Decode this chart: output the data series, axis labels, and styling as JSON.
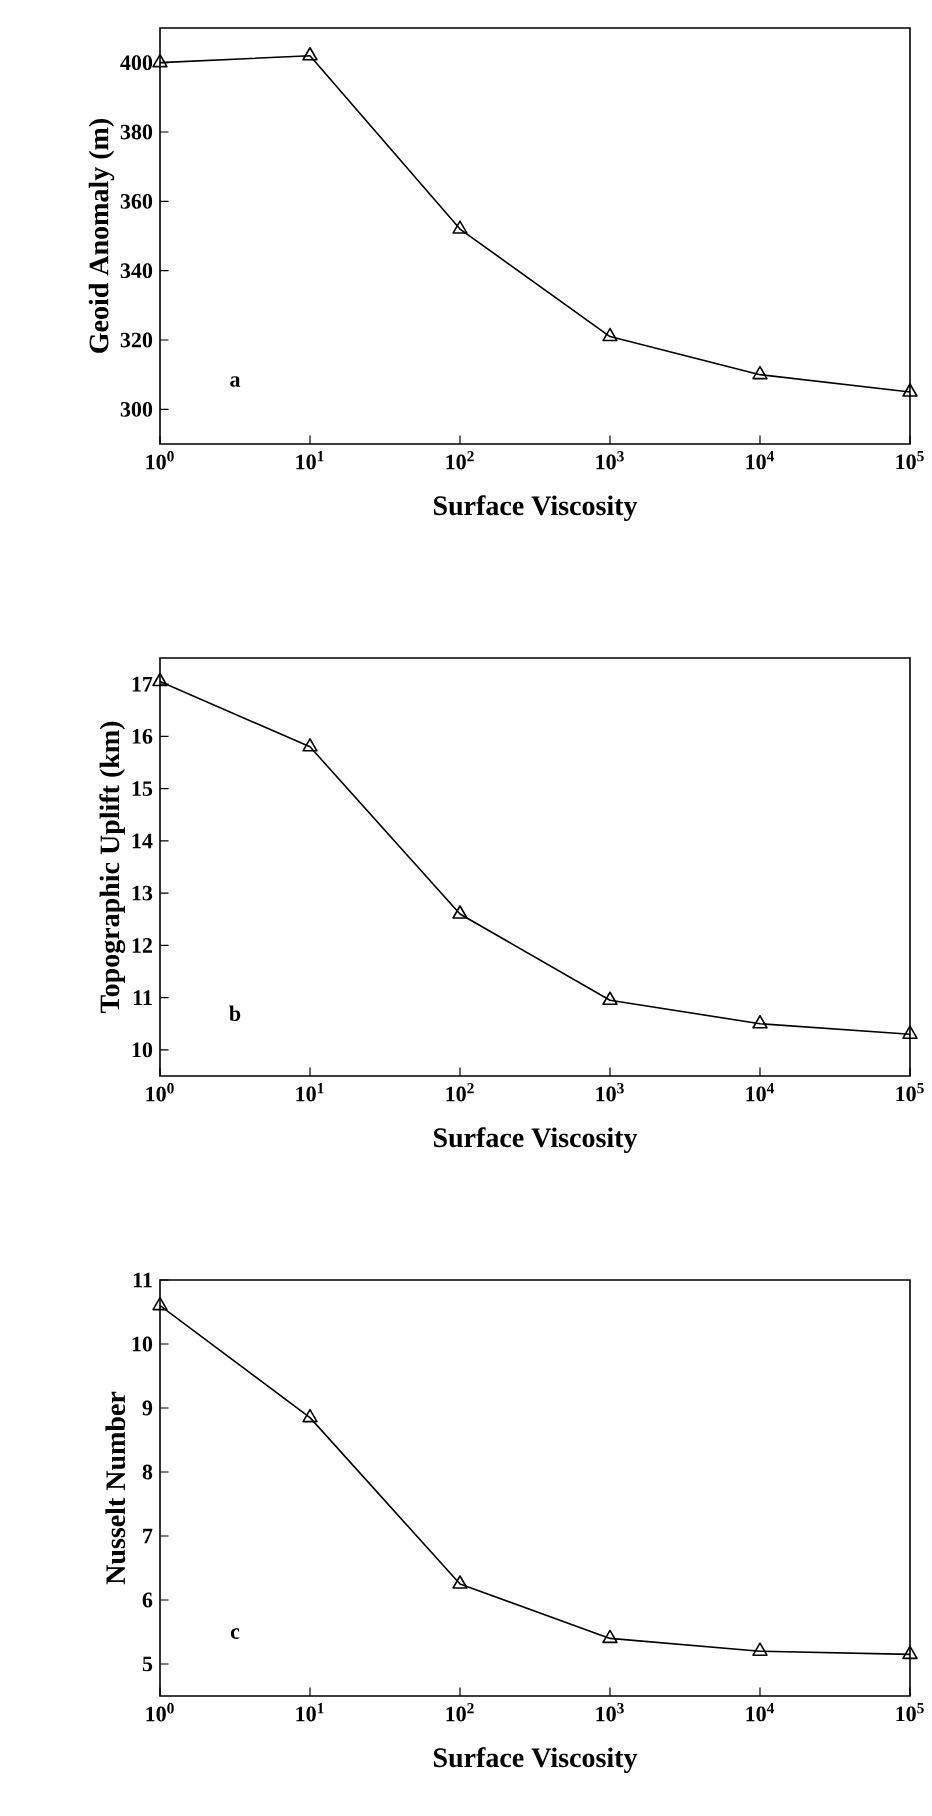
{
  "chart_data": [
    {
      "type": "line",
      "xlabel": "Surface Viscosity",
      "ylabel": "Geoid Anomaly (m)",
      "log": "x",
      "marker": "triangle",
      "line_style": "solid",
      "x": [
        1,
        10,
        100,
        1000,
        10000,
        100000
      ],
      "series": [
        {
          "color": "#000000",
          "values": [
            400,
            402,
            352,
            321,
            310,
            305
          ]
        }
      ],
      "xlim": [
        1,
        100000
      ],
      "xticks": [
        {
          "value": 1,
          "label": "10$^{0}$"
        },
        {
          "value": 10,
          "label": "10$^{1}$"
        },
        {
          "value": 100,
          "label": "10$^{2}$"
        },
        {
          "value": 1000,
          "label": "10$^{3}$"
        },
        {
          "value": 10000,
          "label": "10$^{4}$"
        },
        {
          "value": 100000,
          "label": "10$^{5}$"
        }
      ],
      "ylim": [
        290,
        410
      ],
      "yticks": [
        300,
        320,
        340,
        360,
        380,
        400
      ],
      "annotations": [
        "a"
      ]
    },
    {
      "type": "line",
      "xlabel": "Surface Viscosity",
      "ylabel": "Topographic Uplift (km)",
      "log": "x",
      "marker": "triangle",
      "line_style": "solid",
      "x": [
        1,
        10,
        100,
        1000,
        10000,
        100000
      ],
      "series": [
        {
          "color": "#000000",
          "values": [
            17.05,
            15.8,
            12.6,
            10.95,
            10.5,
            10.3
          ]
        }
      ],
      "xlim": [
        1,
        100000
      ],
      "xticks": [
        {
          "value": 1,
          "label": "10$^{0}$"
        },
        {
          "value": 10,
          "label": "10$^{1}$"
        },
        {
          "value": 100,
          "label": "10$^{2}$"
        },
        {
          "value": 1000,
          "label": "10$^{3}$"
        },
        {
          "value": 10000,
          "label": "10$^{4}$"
        },
        {
          "value": 100000,
          "label": "10$^{5}$"
        }
      ],
      "ylim": [
        9.5,
        17.5
      ],
      "yticks": [
        10,
        11,
        12,
        13,
        14,
        15,
        16,
        17
      ],
      "annotations": [
        "b"
      ]
    },
    {
      "type": "line",
      "xlabel": "Surface Viscosity",
      "ylabel": "Nusselt Number",
      "log": "x",
      "marker": "triangle",
      "line_style": "solid",
      "x": [
        1,
        10,
        100,
        1000,
        10000,
        100000
      ],
      "series": [
        {
          "color": "#000000",
          "values": [
            10.6,
            8.85,
            6.25,
            5.4,
            5.2,
            5.15
          ]
        }
      ],
      "xlim": [
        1,
        100000
      ],
      "xticks": [
        {
          "value": 1,
          "label": "10$^{0}$"
        },
        {
          "value": 10,
          "label": "10$^{1}$"
        },
        {
          "value": 100,
          "label": "10$^{2}$"
        },
        {
          "value": 1000,
          "label": "10$^{3}$"
        },
        {
          "value": 10000,
          "label": "10$^{4}$"
        },
        {
          "value": 100000,
          "label": "10$^{5}$"
        }
      ],
      "ylim": [
        4.5,
        11
      ],
      "yticks": [
        5,
        6,
        7,
        8,
        9,
        10,
        11
      ],
      "annotations": [
        "c"
      ]
    }
  ]
}
